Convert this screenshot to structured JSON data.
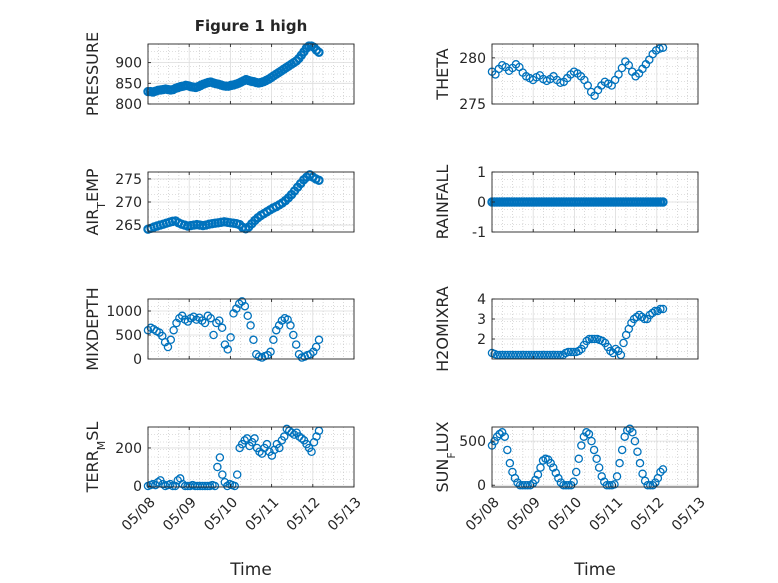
{
  "figure": {
    "title": "Figure 1 high",
    "xlabel": "Time"
  },
  "chart_data": [
    {
      "type": "scatter",
      "ylabel": "PRESSURE",
      "yticks": [
        "800",
        "850",
        "900"
      ],
      "ylim": [
        800,
        945
      ],
      "x_start": "05/08",
      "x_end": "05/12",
      "xlim_day": [
        8,
        13
      ],
      "values": [
        830,
        830,
        829,
        831,
        833,
        834,
        835,
        836,
        835,
        834,
        835,
        838,
        840,
        842,
        843,
        845,
        844,
        842,
        841,
        840,
        842,
        845,
        848,
        850,
        852,
        853,
        851,
        849,
        848,
        846,
        844,
        843,
        843,
        845,
        846,
        848,
        850,
        853,
        856,
        859,
        857,
        855,
        854,
        852,
        851,
        852,
        854,
        857,
        860,
        864,
        868,
        872,
        876,
        880,
        884,
        888,
        892,
        896,
        900,
        904,
        910,
        918,
        926,
        935,
        940,
        940,
        937,
        930,
        925
      ],
      "markers_bold": true
    },
    {
      "type": "scatter",
      "ylabel": "THETA",
      "yticks": [
        "275",
        "280"
      ],
      "ylim": [
        275,
        281.5
      ],
      "x_start": "05/08",
      "x_end": "05/12",
      "xlim_day": [
        8,
        13
      ],
      "values": [
        278.5,
        278.2,
        278.8,
        279.2,
        279.0,
        278.6,
        278.9,
        279.3,
        279.0,
        278.4,
        278.0,
        277.8,
        277.6,
        277.9,
        278.1,
        277.7,
        277.5,
        277.7,
        278.0,
        277.6,
        277.3,
        277.4,
        277.8,
        278.2,
        278.5,
        278.3,
        278.0,
        277.6,
        277.0,
        276.3,
        275.9,
        276.5,
        277.0,
        277.4,
        277.2,
        277.0,
        277.6,
        278.2,
        278.9,
        279.6,
        279.2,
        278.5,
        278.0,
        278.3,
        278.8,
        279.3,
        279.8,
        280.4,
        280.8,
        281.0,
        281.1
      ],
      "markers_bold": false
    },
    {
      "type": "scatter",
      "ylabel": "AIR_TEMP",
      "ylabel_main": "AIR",
      "ylabel_sub": "T",
      "ylabel_tail": "EMP",
      "yticks": [
        "265",
        "270",
        "275"
      ],
      "ylim": [
        263.5,
        276.5
      ],
      "x_start": "05/08",
      "x_end": "05/12",
      "xlim_day": [
        8,
        13
      ],
      "values": [
        264.1,
        264.3,
        264.6,
        264.8,
        265.0,
        265.2,
        265.4,
        265.6,
        265.8,
        265.9,
        265.5,
        265.2,
        265.0,
        264.8,
        264.9,
        265.0,
        265.1,
        265.0,
        264.9,
        265.0,
        265.2,
        265.3,
        265.4,
        265.5,
        265.6,
        265.7,
        265.6,
        265.5,
        265.4,
        265.3,
        265.1,
        264.5,
        264.2,
        264.6,
        265.3,
        266.0,
        266.6,
        267.1,
        267.5,
        267.9,
        268.3,
        268.7,
        269.0,
        269.4,
        269.8,
        270.3,
        270.9,
        271.6,
        272.4,
        273.2,
        274.0,
        274.8,
        275.4,
        275.9,
        275.4,
        275.0,
        274.7
      ],
      "markers_bold": true
    },
    {
      "type": "scatter",
      "ylabel": "RAINFALL",
      "yticks": [
        "-1",
        "0",
        "1"
      ],
      "ylim": [
        -1,
        1
      ],
      "x_start": "05/08",
      "x_end": "05/12",
      "xlim_day": [
        8,
        13
      ],
      "values": [
        0,
        0,
        0,
        0,
        0,
        0,
        0,
        0,
        0,
        0,
        0,
        0,
        0,
        0,
        0,
        0,
        0,
        0,
        0,
        0,
        0,
        0,
        0,
        0,
        0,
        0,
        0,
        0,
        0,
        0,
        0,
        0,
        0,
        0,
        0,
        0,
        0,
        0,
        0,
        0,
        0,
        0,
        0,
        0,
        0,
        0,
        0,
        0,
        0,
        0,
        0,
        0,
        0,
        0,
        0,
        0,
        0,
        0,
        0,
        0,
        0,
        0,
        0,
        0,
        0,
        0,
        0,
        0,
        0,
        0
      ],
      "markers_bold": true
    },
    {
      "type": "scatter",
      "ylabel": "MIXDEPTH",
      "yticks": [
        "0",
        "500",
        "1000"
      ],
      "ylim": [
        0,
        1250
      ],
      "x_start": "05/08",
      "x_end": "05/12",
      "xlim_day": [
        8,
        13
      ],
      "values": [
        600,
        650,
        620,
        580,
        550,
        480,
        350,
        250,
        400,
        600,
        750,
        850,
        900,
        820,
        780,
        850,
        880,
        820,
        860,
        800,
        750,
        900,
        850,
        500,
        750,
        800,
        650,
        300,
        200,
        450,
        950,
        1050,
        1150,
        1200,
        1100,
        900,
        700,
        400,
        100,
        50,
        30,
        60,
        80,
        150,
        400,
        600,
        700,
        800,
        850,
        820,
        700,
        500,
        300,
        100,
        30,
        50,
        80,
        100,
        150,
        250,
        400
      ],
      "markers_bold": false
    },
    {
      "type": "scatter",
      "ylabel": "H2OMIXRA",
      "yticks": [
        "2",
        "3",
        "4"
      ],
      "ylim": [
        1,
        4
      ],
      "x_start": "05/08",
      "x_end": "05/12",
      "xlim_day": [
        8,
        13
      ],
      "values": [
        1.3,
        1.25,
        1.2,
        1.2,
        1.2,
        1.2,
        1.2,
        1.2,
        1.2,
        1.2,
        1.2,
        1.2,
        1.2,
        1.2,
        1.2,
        1.2,
        1.2,
        1.2,
        1.2,
        1.2,
        1.2,
        1.2,
        1.2,
        1.2,
        1.2,
        1.2,
        1.2,
        1.2,
        1.3,
        1.35,
        1.35,
        1.35,
        1.35,
        1.4,
        1.5,
        1.7,
        1.9,
        2.0,
        2.0,
        2.0,
        2.0,
        1.95,
        1.9,
        1.8,
        1.6,
        1.4,
        1.3,
        1.5,
        1.4,
        1.2,
        1.8,
        2.2,
        2.5,
        2.8,
        3.0,
        3.1,
        3.2,
        3.1,
        3.0,
        3.0,
        3.2,
        3.3,
        3.4,
        3.4,
        3.5,
        3.5
      ],
      "markers_bold": false
    },
    {
      "type": "scatter",
      "ylabel": "TERR_MSL",
      "ylabel_main": "TERR",
      "ylabel_sub": "M",
      "ylabel_tail": "SL",
      "yticks": [
        "0",
        "200"
      ],
      "ylim": [
        -5,
        310
      ],
      "x_start": "05/08",
      "x_end": "05/12",
      "xlim_day": [
        8,
        13
      ],
      "values": [
        0,
        5,
        10,
        5,
        20,
        30,
        10,
        0,
        5,
        10,
        0,
        0,
        30,
        40,
        10,
        0,
        0,
        0,
        5,
        0,
        0,
        0,
        0,
        0,
        0,
        0,
        5,
        0,
        100,
        150,
        60,
        20,
        0,
        10,
        5,
        0,
        60,
        200,
        220,
        240,
        250,
        210,
        230,
        250,
        200,
        180,
        170,
        200,
        220,
        180,
        160,
        190,
        220,
        200,
        240,
        260,
        300,
        290,
        280,
        270,
        280,
        260,
        250,
        240,
        220,
        200,
        180,
        230,
        260,
        290
      ],
      "markers_bold": false
    },
    {
      "type": "scatter",
      "ylabel": "SUN_FLUX",
      "ylabel_main": "SUN",
      "ylabel_sub": "F",
      "ylabel_tail": "LUX",
      "yticks": [
        "0",
        "500"
      ],
      "ylim": [
        -20,
        660
      ],
      "x_start": "05/08",
      "x_end": "05/12",
      "xlim_day": [
        8,
        13
      ],
      "values": [
        450,
        500,
        550,
        580,
        600,
        550,
        400,
        250,
        150,
        80,
        30,
        0,
        0,
        0,
        0,
        0,
        20,
        60,
        120,
        200,
        280,
        300,
        290,
        250,
        200,
        140,
        80,
        30,
        0,
        0,
        0,
        0,
        40,
        150,
        300,
        450,
        550,
        600,
        580,
        500,
        400,
        300,
        200,
        100,
        40,
        0,
        0,
        0,
        10,
        100,
        250,
        400,
        550,
        620,
        640,
        600,
        500,
        380,
        250,
        130,
        50,
        0,
        0,
        0,
        30,
        80,
        150,
        180
      ],
      "markers_bold": false
    }
  ]
}
